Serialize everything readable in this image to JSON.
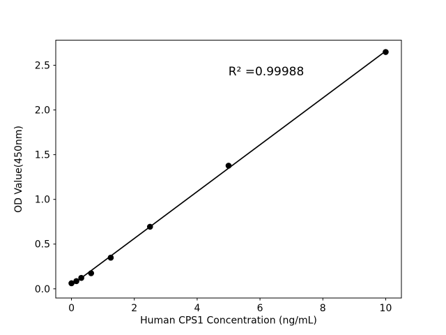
{
  "chart_data": {
    "type": "scatter",
    "title": "",
    "xlabel": "Human CPS1 Concentration (ng/mL)",
    "ylabel": "OD Value(450nm)",
    "annotation": "R² =0.99988",
    "x": [
      0,
      0.156,
      0.3125,
      0.625,
      1.25,
      2.5,
      5,
      10
    ],
    "y": [
      0.062,
      0.086,
      0.122,
      0.174,
      0.348,
      0.694,
      1.377,
      2.648
    ],
    "trendline": {
      "type": "linear",
      "x_start": 0,
      "x_end": 10
    },
    "xtick_values": [
      0,
      2,
      4,
      6,
      8,
      10
    ],
    "xtick_labels": [
      "0",
      "2",
      "4",
      "6",
      "8",
      "10"
    ],
    "ytick_values": [
      0.0,
      0.5,
      1.0,
      1.5,
      2.0,
      2.5
    ],
    "ytick_labels": [
      "0.0",
      "0.5",
      "1.0",
      "1.5",
      "2.0",
      "2.5"
    ],
    "xlim": [
      -0.5,
      10.5
    ],
    "ylim": [
      -0.103,
      2.78
    ],
    "grid": false,
    "legend": null,
    "marker_color": "#000000",
    "line_color": "#000000",
    "axis_color": "#000000",
    "background": "#ffffff"
  }
}
